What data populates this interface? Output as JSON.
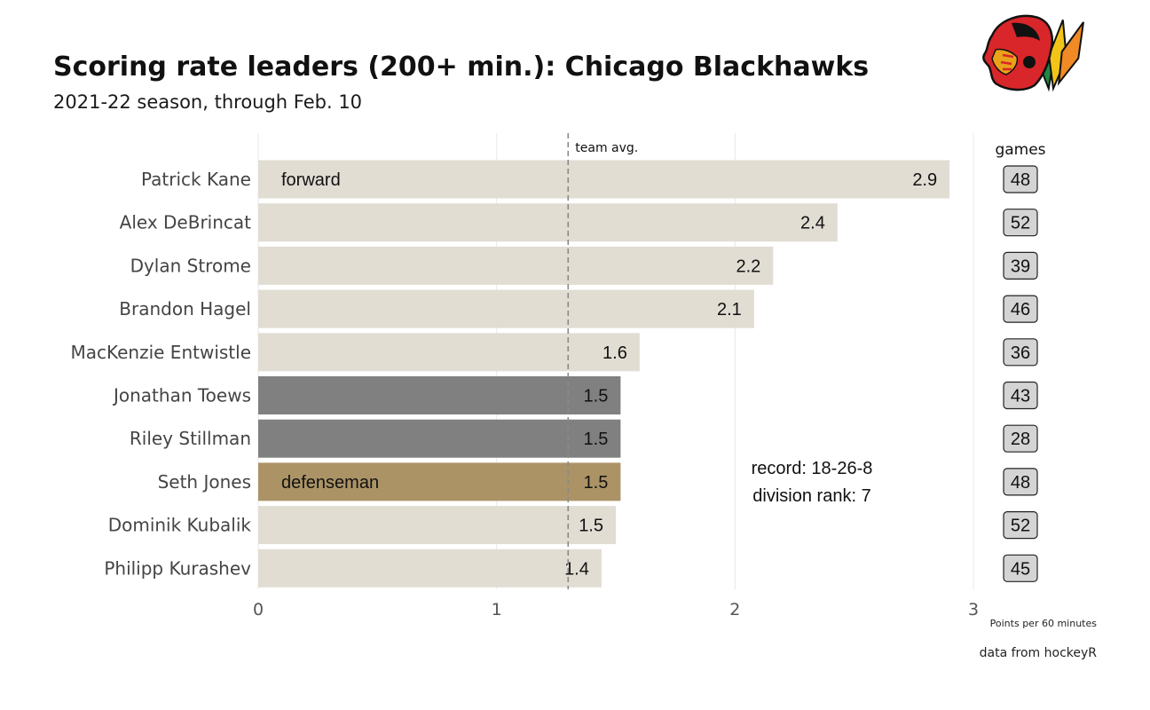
{
  "chart_data": {
    "type": "bar",
    "orientation": "horizontal",
    "title": "Scoring rate leaders (200+ min.): Chicago Blackhawks",
    "subtitle": "2021-22 season, through Feb. 10",
    "xlabel": "Points per 60 minutes",
    "caption": "data from hockeyR",
    "xlim": [
      0,
      3
    ],
    "xticks": [
      "0",
      "1",
      "2",
      "3"
    ],
    "grid": true,
    "team_avg": {
      "value": 1.3,
      "label": "team avg."
    },
    "games_header": "games",
    "position_labels": {
      "forward": "forward",
      "defenseman": "defenseman"
    },
    "colors": {
      "forward": "#e1ddd3",
      "defenseman": "#ab9366",
      "highlight": "#808080",
      "games_box": "#d4d4d4"
    },
    "players": [
      {
        "name": "Patrick Kane",
        "value": 2.9,
        "label": "2.9",
        "games": "48",
        "group": "forward",
        "position_label": "forward"
      },
      {
        "name": "Alex DeBrincat",
        "value": 2.43,
        "label": "2.4",
        "games": "52",
        "group": "forward"
      },
      {
        "name": "Dylan Strome",
        "value": 2.16,
        "label": "2.2",
        "games": "39",
        "group": "forward"
      },
      {
        "name": "Brandon Hagel",
        "value": 2.08,
        "label": "2.1",
        "games": "46",
        "group": "forward"
      },
      {
        "name": "MacKenzie Entwistle",
        "value": 1.6,
        "label": "1.6",
        "games": "36",
        "group": "forward"
      },
      {
        "name": "Jonathan Toews",
        "value": 1.52,
        "label": "1.5",
        "games": "43",
        "group": "highlight"
      },
      {
        "name": "Riley Stillman",
        "value": 1.52,
        "label": "1.5",
        "games": "28",
        "group": "highlight"
      },
      {
        "name": "Seth Jones",
        "value": 1.52,
        "label": "1.5",
        "games": "48",
        "group": "defenseman",
        "position_label": "defenseman"
      },
      {
        "name": "Dominik Kubalik",
        "value": 1.5,
        "label": "1.5",
        "games": "52",
        "group": "forward"
      },
      {
        "name": "Philipp Kurashev",
        "value": 1.44,
        "label": "1.4",
        "games": "45",
        "group": "forward"
      }
    ],
    "annotation": [
      "record: 18-26-8",
      "division rank: 7"
    ]
  },
  "logo": {
    "name": "chicago-blackhawks-logo"
  }
}
